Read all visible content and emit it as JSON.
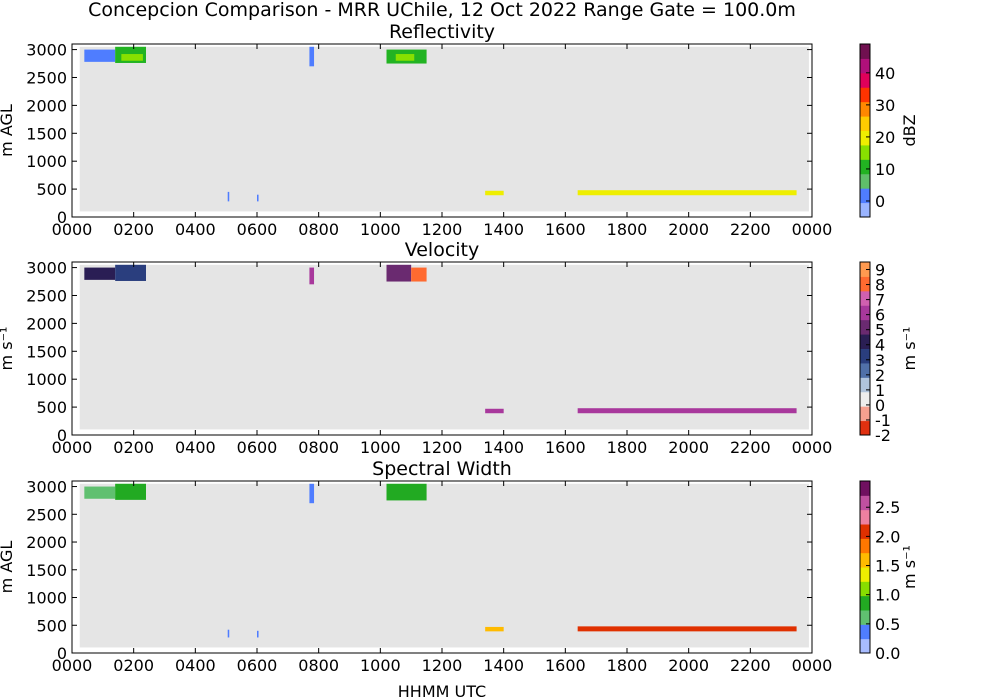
{
  "figure": {
    "title": "Concepcion Comparison - MRR UChile, 12 Oct 2022 Range Gate = 100.0m",
    "xlabel": "HHMM UTC"
  },
  "chart_data": [
    {
      "type": "heatmap",
      "title": "Reflectivity",
      "ylabel": "m AGL",
      "xlabel": "",
      "x_ticks": [
        "0000",
        "0200",
        "0400",
        "0600",
        "0800",
        "1000",
        "1200",
        "1400",
        "1600",
        "1800",
        "2000",
        "2200",
        "0000"
      ],
      "y_ticks": [
        "0",
        "500",
        "1000",
        "1500",
        "2000",
        "2500",
        "3000"
      ],
      "xlim_hours": [
        0,
        24
      ],
      "ylim": [
        0,
        3100
      ],
      "colorbar": {
        "label": "dBZ",
        "range": [
          -5,
          49
        ],
        "ticks": [
          "0",
          "10",
          "20",
          "30",
          "40"
        ],
        "tick_values": [
          0,
          10,
          20,
          30,
          40
        ],
        "colors": [
          "#9ab4ff",
          "#4f7dff",
          "#5fbf6a",
          "#22b322",
          "#88e000",
          "#eeee00",
          "#ffcc00",
          "#ff8800",
          "#ff3300",
          "#e0005a",
          "#b0107a",
          "#701050"
        ]
      },
      "regions": [
        {
          "t0": 0.4,
          "t1": 1.4,
          "h0": 2780,
          "h1": 3000,
          "v": 3
        },
        {
          "t0": 1.4,
          "t1": 2.4,
          "h0": 2760,
          "h1": 3050,
          "v": 11
        },
        {
          "t0": 1.6,
          "t1": 2.3,
          "h0": 2800,
          "h1": 2920,
          "v": 15
        },
        {
          "t0": 7.7,
          "t1": 7.85,
          "h0": 2700,
          "h1": 3050,
          "v": 2
        },
        {
          "t0": 10.2,
          "t1": 11.5,
          "h0": 2750,
          "h1": 3000,
          "v": 11
        },
        {
          "t0": 10.5,
          "t1": 11.1,
          "h0": 2800,
          "h1": 2920,
          "v": 16
        },
        {
          "t0": 5.05,
          "t1": 5.1,
          "h0": 280,
          "h1": 450,
          "v": 2
        },
        {
          "t0": 6.0,
          "t1": 6.05,
          "h0": 280,
          "h1": 400,
          "v": 2
        },
        {
          "t0": 13.4,
          "t1": 14.0,
          "h0": 390,
          "h1": 470,
          "v": 20
        },
        {
          "t0": 16.4,
          "t1": 23.5,
          "h0": 390,
          "h1": 480,
          "v": 20
        }
      ]
    },
    {
      "type": "heatmap",
      "title": "Velocity",
      "ylabel": "m s⁻¹",
      "xlabel": "",
      "x_ticks": [
        "0000",
        "0200",
        "0400",
        "0600",
        "0800",
        "1000",
        "1200",
        "1400",
        "1600",
        "1800",
        "2000",
        "2200",
        "0000"
      ],
      "y_ticks": [
        "0",
        "500",
        "1000",
        "1500",
        "2000",
        "2500",
        "3000"
      ],
      "xlim_hours": [
        0,
        24
      ],
      "ylim": [
        0,
        3100
      ],
      "colorbar": {
        "label": "m s⁻¹",
        "range": [
          -2,
          9.5
        ],
        "ticks": [
          "-2",
          "-1",
          "0",
          "1",
          "2",
          "3",
          "4",
          "5",
          "6",
          "7",
          "8",
          "9"
        ],
        "tick_values": [
          -2,
          -1,
          0,
          1,
          2,
          3,
          4,
          5,
          6,
          7,
          8,
          9
        ],
        "colors": [
          "#e03010",
          "#f6a090",
          "#eeeeee",
          "#b0c4dc",
          "#5070a8",
          "#2a3e7e",
          "#2a1e54",
          "#6a2a70",
          "#a8389c",
          "#d060b0",
          "#ff6a30",
          "#ff9a50"
        ]
      },
      "regions": [
        {
          "t0": 0.4,
          "t1": 1.4,
          "h0": 2780,
          "h1": 3000,
          "v": 4
        },
        {
          "t0": 1.4,
          "t1": 2.4,
          "h0": 2760,
          "h1": 3050,
          "v": 3.5
        },
        {
          "t0": 7.7,
          "t1": 7.85,
          "h0": 2700,
          "h1": 3000,
          "v": 6
        },
        {
          "t0": 10.2,
          "t1": 11.0,
          "h0": 2750,
          "h1": 3050,
          "v": 5.5
        },
        {
          "t0": 11.0,
          "t1": 11.5,
          "h0": 2750,
          "h1": 3000,
          "v": 8
        },
        {
          "t0": 13.4,
          "t1": 14.0,
          "h0": 390,
          "h1": 470,
          "v": 6
        },
        {
          "t0": 16.4,
          "t1": 23.5,
          "h0": 390,
          "h1": 480,
          "v": 6
        }
      ]
    },
    {
      "type": "heatmap",
      "title": "Spectral Width",
      "ylabel": "m AGL",
      "xlabel": "HHMM UTC",
      "x_ticks": [
        "0000",
        "0200",
        "0400",
        "0600",
        "0800",
        "1000",
        "1200",
        "1400",
        "1600",
        "1800",
        "2000",
        "2200",
        "0000"
      ],
      "y_ticks": [
        "0",
        "500",
        "1000",
        "1500",
        "2000",
        "2500",
        "3000"
      ],
      "xlim_hours": [
        0,
        24
      ],
      "ylim": [
        0,
        3100
      ],
      "colorbar": {
        "label": "m s⁻¹",
        "range": [
          0,
          2.95
        ],
        "ticks": [
          "0.0",
          "0.5",
          "1.0",
          "1.5",
          "2.0",
          "2.5"
        ],
        "tick_values": [
          0,
          0.5,
          1.0,
          1.5,
          2.0,
          2.5
        ],
        "colors": [
          "#a8bcff",
          "#4f7dff",
          "#60c070",
          "#22aa22",
          "#88dd00",
          "#eeee00",
          "#ffbb00",
          "#ff7700",
          "#e03000",
          "#ee80a0",
          "#c050a0",
          "#701060"
        ]
      },
      "regions": [
        {
          "t0": 0.4,
          "t1": 1.4,
          "h0": 2780,
          "h1": 3000,
          "v": 0.5
        },
        {
          "t0": 1.4,
          "t1": 2.4,
          "h0": 2760,
          "h1": 3050,
          "v": 0.75
        },
        {
          "t0": 7.7,
          "t1": 7.85,
          "h0": 2700,
          "h1": 3050,
          "v": 0.4
        },
        {
          "t0": 10.2,
          "t1": 11.5,
          "h0": 2750,
          "h1": 3050,
          "v": 0.8
        },
        {
          "t0": 5.05,
          "t1": 5.1,
          "h0": 280,
          "h1": 420,
          "v": 0.4
        },
        {
          "t0": 6.0,
          "t1": 6.05,
          "h0": 280,
          "h1": 400,
          "v": 0.4
        },
        {
          "t0": 13.4,
          "t1": 14.0,
          "h0": 390,
          "h1": 470,
          "v": 1.7
        },
        {
          "t0": 16.4,
          "t1": 23.5,
          "h0": 390,
          "h1": 480,
          "v": 2.0
        }
      ]
    }
  ]
}
